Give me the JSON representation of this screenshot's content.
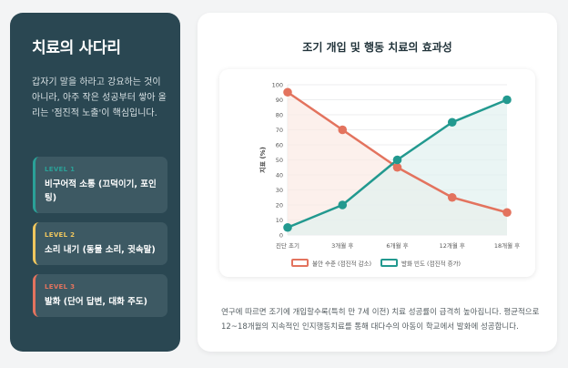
{
  "sidebar": {
    "title": "치료의 사다리",
    "description": "갑자기 말을 하라고 강요하는 것이 아니라, 아주 작은 성공부터 쌓아 올리는 '점진적 노출'이 핵심입니다.",
    "steps": [
      {
        "level": "LEVEL 1",
        "name": "비구어적 소통 (끄덕이기, 포인팅)",
        "color": "#2aa198"
      },
      {
        "level": "LEVEL 2",
        "name": "소리 내기 (동물 소리, 귓속말)",
        "color": "#f0c75e"
      },
      {
        "level": "LEVEL 3",
        "name": "발화 (단어 답변, 대화 주도)",
        "color": "#e3735e"
      }
    ]
  },
  "main": {
    "title": "조기 개입 및 행동 치료의 효과성",
    "footnote": "연구에 따르면 조기에 개입할수록(특히 만 7세 이전) 치료 성공률이 급격히 높아집니다. 평균적으로 12~18개월의 지속적인 인지행동치료를 통해 대다수의 아동이 학교에서 발화에 성공합니다."
  },
  "chart_data": {
    "type": "line",
    "categories": [
      "진단 초기",
      "3개월 후",
      "6개월 후",
      "12개월 후",
      "18개월 후"
    ],
    "series": [
      {
        "name": "불안 수준 (점진적 감소)",
        "values": [
          95,
          70,
          45,
          25,
          15
        ],
        "color": "#e3735e",
        "fill": "#fbe9e4"
      },
      {
        "name": "발화 빈도 (점진적 증가)",
        "values": [
          5,
          20,
          50,
          75,
          90
        ],
        "color": "#22998f",
        "fill": "#e1f1ef"
      }
    ],
    "ylabel": "지표 (%)",
    "ylim": [
      0,
      100
    ],
    "yticks": [
      0,
      10,
      20,
      30,
      40,
      50,
      60,
      70,
      80,
      90,
      100
    ],
    "grid": true,
    "legend": "bottom"
  }
}
